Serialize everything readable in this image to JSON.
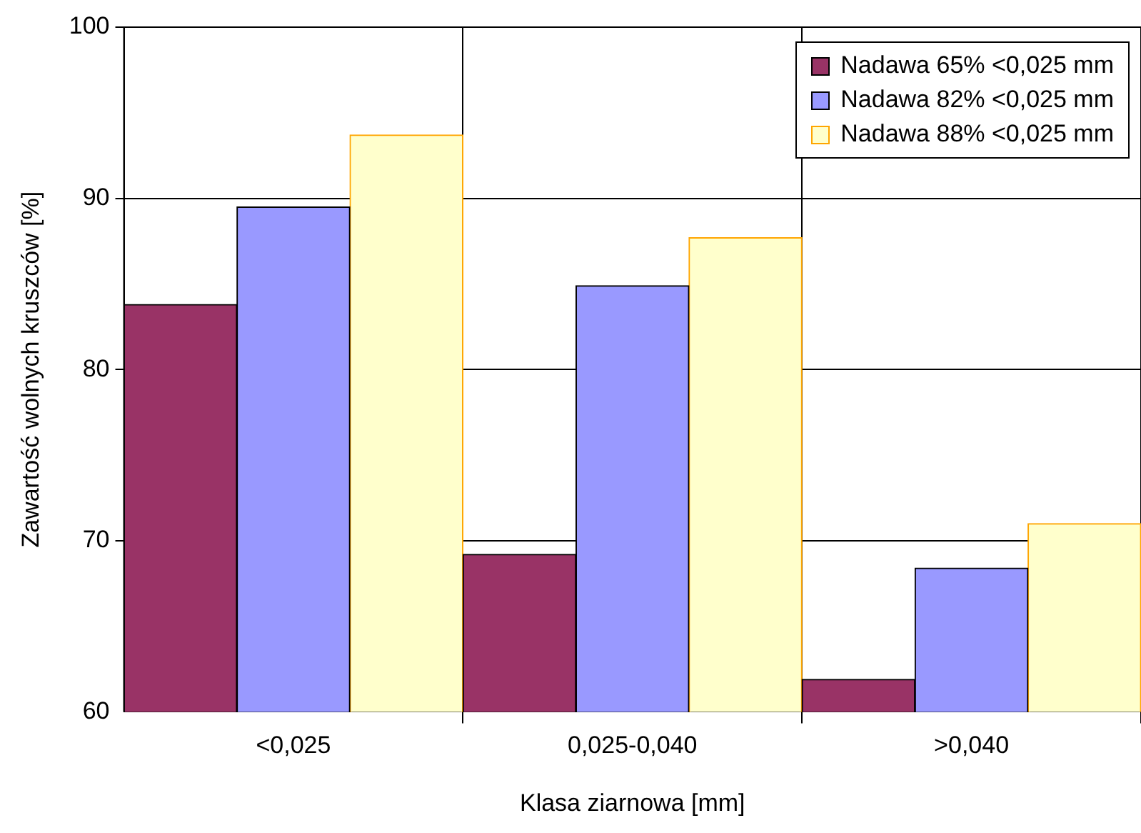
{
  "chart_data": {
    "type": "bar",
    "xlabel": "Klasa ziarnowa [mm]",
    "ylabel": "Zawartość wolnych kruszców [%]",
    "categories": [
      "<0,025",
      "0,025-0,040",
      ">0,040"
    ],
    "series": [
      {
        "name": "Nadawa 65% <0,025 mm",
        "color": "#993366",
        "values": [
          83.8,
          69.2,
          61.9
        ]
      },
      {
        "name": "Nadawa 82% <0,025 mm",
        "color": "#9999ff",
        "values": [
          89.5,
          84.9,
          68.4
        ]
      },
      {
        "name": "Nadawa 88% <0,025 mm",
        "color": "#ffffcc",
        "values": [
          93.7,
          87.7,
          71.0
        ]
      }
    ],
    "ylim": [
      60,
      100
    ],
    "yticks": [
      60,
      70,
      80,
      90,
      100
    ],
    "grid": true,
    "legend": "top right"
  }
}
